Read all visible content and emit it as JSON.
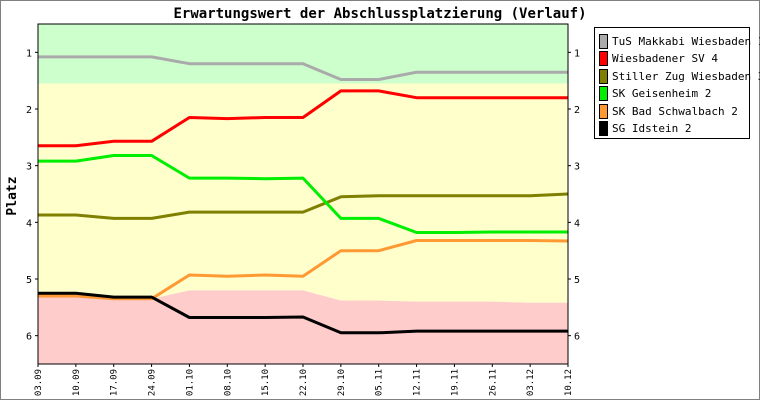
{
  "chart_data": {
    "type": "line",
    "title": "Erwartungswert der Abschlussplatzierung (Verlauf)",
    "xlabel": "",
    "ylabel": "Platz",
    "ylim": [
      0.5,
      6.5
    ],
    "y_ticks": [
      "1",
      "2",
      "3",
      "4",
      "5",
      "6"
    ],
    "y_axis_reversed": true,
    "x": [
      "03.09",
      "10.09",
      "17.09",
      "24.09",
      "01.10",
      "08.10",
      "15.10",
      "22.10",
      "29.10",
      "05.11",
      "12.11",
      "19.11",
      "26.11",
      "03.12",
      "10.12"
    ],
    "background_zones": [
      {
        "color": "#ccffcc",
        "bottom": [
          1.55,
          1.55,
          1.55,
          1.55,
          1.55,
          1.55,
          1.55,
          1.55,
          1.55,
          1.55,
          1.55,
          1.55,
          1.55,
          1.55,
          1.55
        ]
      },
      {
        "color": "#ffffcc",
        "bottom": [
          5.3,
          5.3,
          5.35,
          5.35,
          5.2,
          5.2,
          5.2,
          5.2,
          5.38,
          5.38,
          5.4,
          5.4,
          5.4,
          5.42,
          5.42
        ]
      },
      {
        "color": "#ffcccc",
        "bottom": [
          6.5,
          6.5,
          6.5,
          6.5,
          6.5,
          6.5,
          6.5,
          6.5,
          6.5,
          6.5,
          6.5,
          6.5,
          6.5,
          6.5,
          6.5
        ]
      }
    ],
    "legend_position": "top-right",
    "series": [
      {
        "name": "TuS Makkabi Wiesbaden 1",
        "color": "#aaaaaa",
        "values": [
          1.08,
          1.08,
          1.08,
          1.08,
          1.2,
          1.2,
          1.2,
          1.2,
          1.48,
          1.48,
          1.35,
          1.35,
          1.35,
          1.35,
          1.35
        ]
      },
      {
        "name": "Wiesbadener SV 4",
        "color": "#ff0000",
        "values": [
          2.65,
          2.65,
          2.57,
          2.57,
          2.15,
          2.17,
          2.15,
          2.15,
          1.68,
          1.68,
          1.8,
          1.8,
          1.8,
          1.8,
          1.8
        ]
      },
      {
        "name": "Stiller Zug Wiesbaden 3",
        "color": "#808000",
        "values": [
          3.87,
          3.87,
          3.93,
          3.93,
          3.82,
          3.82,
          3.82,
          3.82,
          3.55,
          3.53,
          3.53,
          3.53,
          3.53,
          3.53,
          3.5
        ]
      },
      {
        "name": "SK Geisenheim 2",
        "color": "#00ee00",
        "values": [
          2.92,
          2.92,
          2.82,
          2.82,
          3.22,
          3.22,
          3.23,
          3.22,
          3.93,
          3.93,
          4.18,
          4.18,
          4.17,
          4.17,
          4.17
        ]
      },
      {
        "name": "SK Bad Schwalbach 2",
        "color": "#ff9933",
        "values": [
          5.3,
          5.3,
          5.35,
          5.35,
          4.93,
          4.95,
          4.93,
          4.95,
          4.5,
          4.5,
          4.32,
          4.32,
          4.32,
          4.32,
          4.33
        ]
      },
      {
        "name": "SG Idstein 2",
        "color": "#000000",
        "values": [
          5.25,
          5.25,
          5.32,
          5.32,
          5.68,
          5.68,
          5.68,
          5.67,
          5.95,
          5.95,
          5.92,
          5.92,
          5.92,
          5.92,
          5.92
        ]
      }
    ]
  }
}
